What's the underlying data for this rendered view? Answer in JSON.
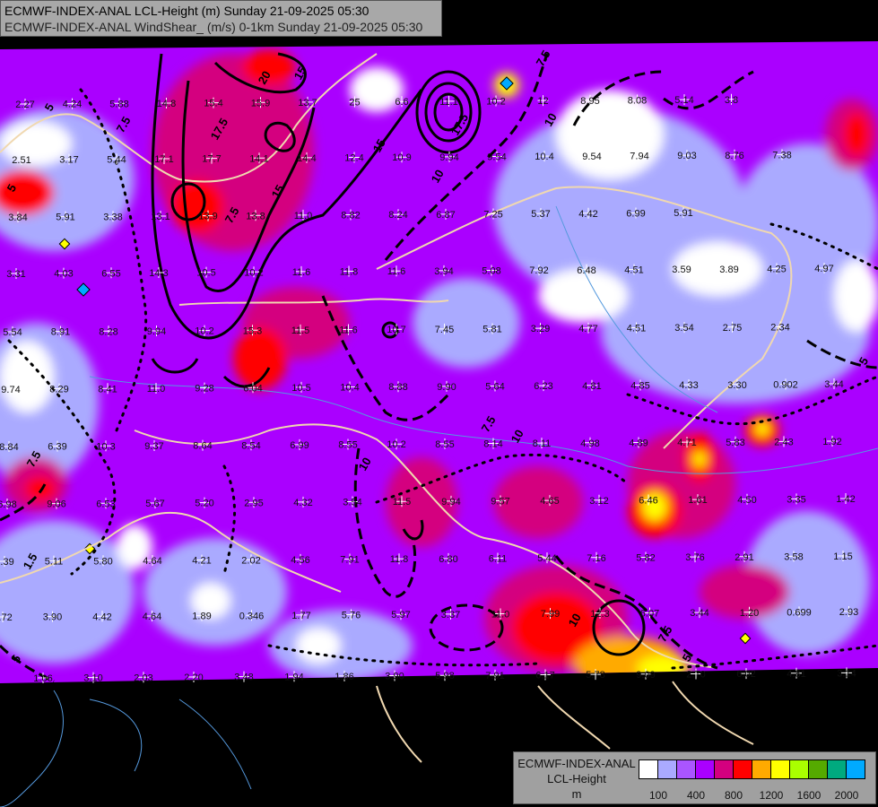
{
  "header": {
    "line1": "ECMWF-INDEX-ANAL LCL-Height (m) Sunday 21-09-2025 05:30",
    "line2": "ECMWF-INDEX-ANAL WindShear_ (m/s) 0-1km Sunday 21-09-2025 05:30"
  },
  "legend": {
    "model": "ECMWF-INDEX-ANAL",
    "field": "LCL-Height",
    "unit": "m",
    "colors": [
      "#ffffff",
      "#aaaaff",
      "#aa55ff",
      "#aa00ff",
      "#d4007f",
      "#ff0000",
      "#ffaa00",
      "#ffff00",
      "#aaff00",
      "#55aa00",
      "#00aa7f",
      "#00aaff"
    ],
    "ticks": [
      "100",
      "400",
      "800",
      "1200",
      "1600",
      "2000"
    ]
  },
  "map_colors": {
    "background": "#000000",
    "border": "#f0d8b0",
    "rivers": "#5599dd",
    "contours": "#000000"
  },
  "value_rows": [
    [
      "2.27",
      "4.24",
      "5.88",
      "14.8",
      "15.4",
      "15.9",
      "13.7",
      "25",
      "6.6",
      "11.1",
      "10.2",
      "12",
      "8.95",
      "8.08",
      "5.14",
      "3.8"
    ],
    [
      "2.51",
      "3.17",
      "5.44",
      "17.1",
      "17.7",
      "14.1",
      "14.4",
      "12.4",
      "10.9",
      "9.94",
      "9.54",
      "10.4",
      "9.54",
      "7.94",
      "9.03",
      "8.76",
      "7.38"
    ],
    [
      "3.84",
      "5.91",
      "3.38",
      "13.1",
      "13.9",
      "13.8",
      "11.0",
      "8.82",
      "8.24",
      "6.87",
      "7.25",
      "5.37",
      "4.42",
      "6.99",
      "5.91"
    ],
    [
      "3.31",
      "4.03",
      "6.55",
      "14.3",
      "10.5",
      "10.2",
      "11.6",
      "11.8",
      "11.6",
      "3.94",
      "5.08",
      "7.92",
      "6.48",
      "4.51",
      "3.59",
      "3.89",
      "4.25",
      "4.97"
    ],
    [
      "5.54",
      "8.91",
      "8.28",
      "9.94",
      "10.2",
      "15.3",
      "11.5",
      "11.6",
      "10.7",
      "7.45",
      "5.81",
      "3.29",
      "4.77",
      "4.51",
      "3.54",
      "2.75",
      "2.34"
    ],
    [
      "9.74",
      "8.29",
      "8.41",
      "11.0",
      "9.28",
      "6.04",
      "10.5",
      "10.4",
      "8.88",
      "9.90",
      "5.64",
      "6.23",
      "4.81",
      "4.85",
      "4.33",
      "3.30",
      "0.902",
      "3.44"
    ],
    [
      "8.84",
      "6.39",
      "10.3",
      "9.37",
      "8.64",
      "8.54",
      "6.99",
      "8.55",
      "10.2",
      "8.55",
      "8.14",
      "8.11",
      "4.98",
      "4.89",
      "4.71",
      "5.83",
      "2.43",
      "1.92"
    ],
    [
      "6.98",
      "9.06",
      "6.53",
      "5.67",
      "5.20",
      "2.95",
      "4.32",
      "3.54",
      "11.5",
      "9.94",
      "9.57",
      "4.65",
      "3.12",
      "6.46",
      "1.61",
      "4.50",
      "3.35",
      "1.42"
    ],
    [
      "1.39",
      "5.11",
      "5.80",
      "4.64",
      "4.21",
      "2.02",
      "4.56",
      "7.91",
      "11.8",
      "6.80",
      "6.11",
      "5.44",
      "7.16",
      "5.82",
      "3.76",
      "2.91",
      "3.58",
      "1.15"
    ],
    [
      "7.72",
      "3.90",
      "4.42",
      "4.64",
      "1.89",
      "0.346",
      "1.77",
      "5.76",
      "5.97",
      "3.37",
      "11.0",
      "7.99",
      "12.3",
      "6.07",
      "3.44",
      "1.20",
      "0.699",
      "2.93"
    ],
    [
      "1.06",
      "3.10",
      "2.03",
      "2.20",
      "3.48",
      "1.94",
      "1.86",
      "3.90",
      "5.98",
      "7.91",
      "6.17",
      "5.78",
      "9.09",
      "2.70",
      "6.02",
      "4.81",
      "3.14"
    ]
  ],
  "contour_labels": [
    "20",
    "17.5",
    "15",
    "17.5",
    "15",
    "10",
    "7.5",
    "10",
    "7.5",
    "5",
    "7.5",
    "5",
    "5",
    "7.5",
    "10",
    "10",
    "7.5",
    "5",
    "1.5",
    "15",
    "10",
    "7.5",
    "5"
  ]
}
